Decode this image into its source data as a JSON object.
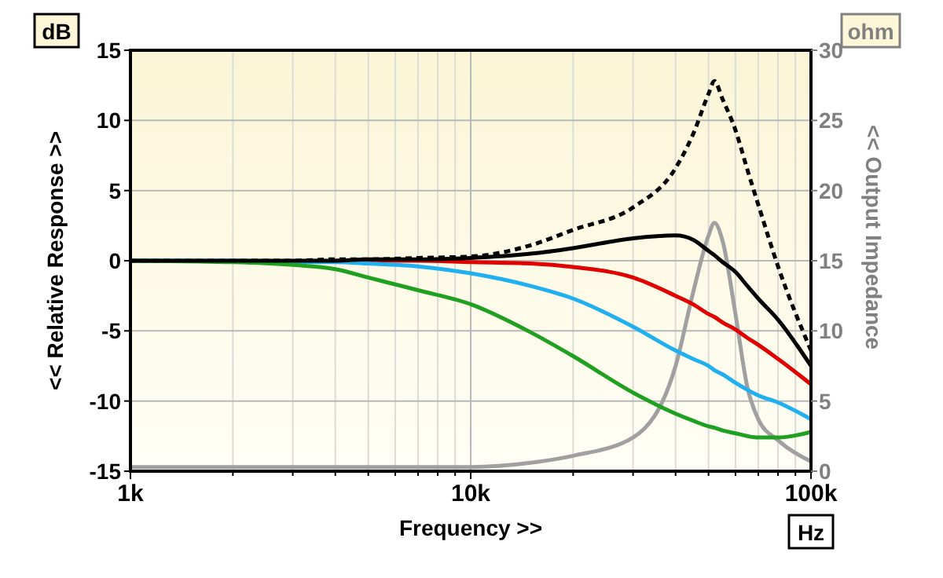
{
  "chart_data": {
    "type": "line",
    "xlabel": "Frequency >>",
    "ylabel": "<< Relative Response >>",
    "y2label": "<< Output Impedance",
    "annotations": [
      "dB",
      "ohm",
      "Hz"
    ],
    "log": "x",
    "grid": true,
    "line_style": "solid",
    "xlim": [
      1000,
      100000
    ],
    "xticks": [
      {
        "value": 1000,
        "label": "1k"
      },
      {
        "value": 2000,
        "label": null
      },
      {
        "value": 3000,
        "label": null
      },
      {
        "value": 4000,
        "label": null
      },
      {
        "value": 5000,
        "label": null
      },
      {
        "value": 6000,
        "label": null
      },
      {
        "value": 7000,
        "label": null
      },
      {
        "value": 8000,
        "label": null
      },
      {
        "value": 9000,
        "label": null
      },
      {
        "value": 10000,
        "label": "10k"
      },
      {
        "value": 20000,
        "label": null
      },
      {
        "value": 30000,
        "label": null
      },
      {
        "value": 40000,
        "label": null
      },
      {
        "value": 50000,
        "label": null
      },
      {
        "value": 60000,
        "label": null
      },
      {
        "value": 70000,
        "label": null
      },
      {
        "value": 80000,
        "label": null
      },
      {
        "value": 90000,
        "label": null
      },
      {
        "value": 100000,
        "label": "100k"
      }
    ],
    "ylim": [
      -15,
      15
    ],
    "yticks": [
      -15,
      -10,
      -5,
      0,
      5,
      10,
      15
    ],
    "y2lim": [
      0,
      30
    ],
    "y2ticks": [
      0,
      5,
      10,
      15,
      20,
      25,
      30
    ],
    "x": [
      1000,
      2000,
      3000,
      4000,
      5000,
      7000,
      10000,
      15000,
      20000,
      30000,
      40000,
      45000,
      50000,
      52000,
      55000,
      60000,
      65000,
      70000,
      80000,
      100000
    ],
    "series": [
      {
        "color": "#a0a0a0",
        "axis": "y2",
        "values": [
          0.3,
          0.3,
          0.3,
          0.3,
          0.3,
          0.3,
          0.3,
          0.6,
          1.1,
          2.4,
          7.5,
          12.7,
          16.8,
          17.7,
          16.4,
          11.2,
          6,
          3.7,
          2.2,
          0.7
        ]
      },
      {
        "color": "#000000",
        "line_style": "dashed",
        "values": [
          0,
          0,
          0,
          0.1,
          0.1,
          0.2,
          0.3,
          1.1,
          2.2,
          3.8,
          6.6,
          9,
          11.9,
          12.8,
          11.5,
          9.3,
          6.5,
          4,
          -0.4,
          -6.4
        ]
      },
      {
        "color": "#e00000",
        "values": [
          null,
          null,
          null,
          0,
          0,
          0,
          -0.1,
          -0.2,
          -0.45,
          -1.2,
          -2.5,
          -3.1,
          -3.8,
          -4.0,
          -4.4,
          -4.9,
          -5.5,
          -6,
          -7,
          -8.8
        ]
      },
      {
        "color": "#20b0f0",
        "values": [
          0,
          0,
          -0.1,
          -0.1,
          -0.2,
          -0.4,
          -0.9,
          -1.8,
          -2.7,
          -4.7,
          -6.4,
          -7,
          -7.5,
          -7.8,
          -8.1,
          -8.7,
          -9.2,
          -9.6,
          -10.1,
          -11.3
        ]
      },
      {
        "color": "#20a020",
        "values": [
          0,
          -0.1,
          -0.3,
          -0.6,
          -1.2,
          -2.1,
          -3.1,
          -5.1,
          -6.8,
          -9.4,
          -10.9,
          -11.4,
          -11.8,
          -11.9,
          -12.1,
          -12.3,
          -12.5,
          -12.6,
          -12.6,
          -12.2
        ]
      },
      {
        "color": "#000000",
        "values": [
          0,
          0,
          0,
          0,
          0.1,
          0.1,
          0.2,
          0.5,
          0.9,
          1.6,
          1.8,
          1.5,
          0.7,
          0.4,
          -0.1,
          -0.8,
          -1.8,
          -2.7,
          -4.2,
          -7.5
        ]
      }
    ]
  }
}
